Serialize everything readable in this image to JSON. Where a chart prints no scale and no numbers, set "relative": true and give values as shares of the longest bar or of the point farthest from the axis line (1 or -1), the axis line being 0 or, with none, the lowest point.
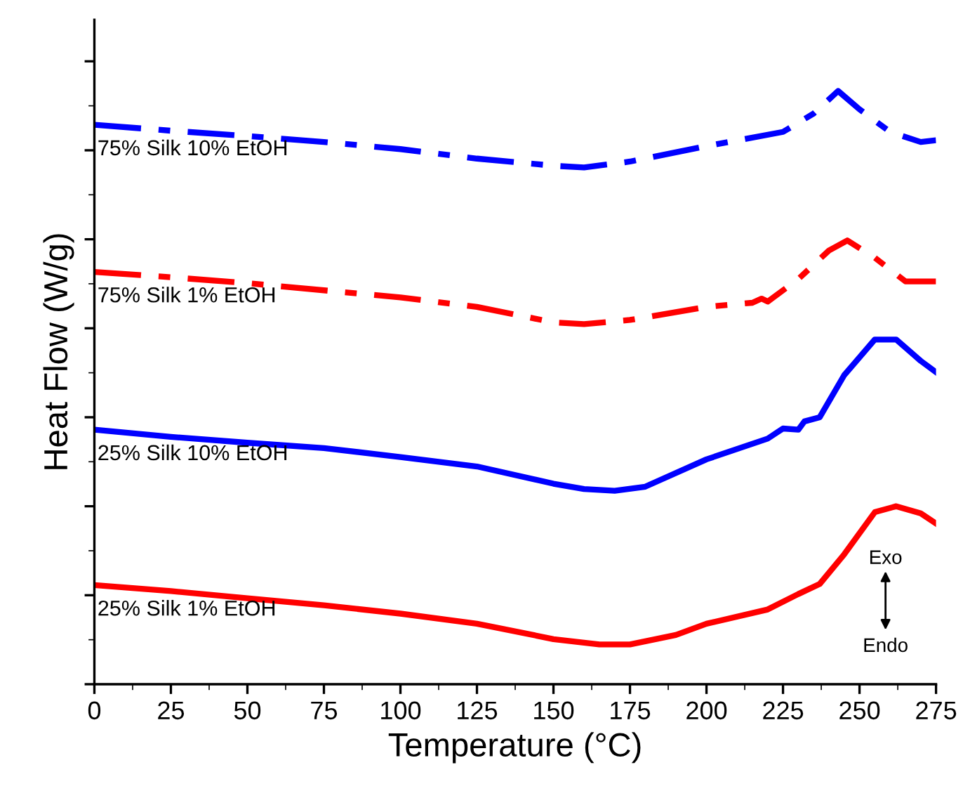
{
  "chart_data": {
    "type": "line",
    "relative": true,
    "xlabel": "Temperature (°C)",
    "ylabel": "Heat Flow (W/g)",
    "xlim": [
      0,
      275
    ],
    "xticks": [
      0,
      25,
      50,
      75,
      100,
      125,
      150,
      175,
      200,
      225,
      250,
      275
    ],
    "tick_labels": "x",
    "grid": false,
    "legend": false,
    "marker": "none",
    "annotations": [
      "Exo",
      "Endo"
    ],
    "series": [
      {
        "name": "75% Silk 10% EtOH",
        "color": "#0000ff",
        "line_style": "dashed",
        "x": [
          0,
          25,
          50,
          75,
          100,
          125,
          150,
          160,
          175,
          200,
          225,
          235,
          243,
          250,
          260,
          270,
          275
        ],
        "values": [
          0.943,
          0.933,
          0.924,
          0.914,
          0.902,
          0.886,
          0.874,
          0.871,
          0.881,
          0.907,
          0.931,
          0.962,
          1.0,
          0.969,
          0.931,
          0.914,
          0.917
        ]
      },
      {
        "name": "75% Silk 1% EtOH",
        "color": "#ff0000",
        "line_style": "dashed",
        "x": [
          0,
          25,
          50,
          75,
          100,
          125,
          150,
          160,
          175,
          200,
          215,
          218,
          220,
          230,
          240,
          246,
          255,
          265,
          275
        ],
        "values": [
          0.695,
          0.686,
          0.676,
          0.664,
          0.652,
          0.636,
          0.61,
          0.607,
          0.614,
          0.636,
          0.643,
          0.65,
          0.645,
          0.683,
          0.731,
          0.748,
          0.719,
          0.679,
          0.679
        ]
      },
      {
        "name": "25% Silk 10% EtOH",
        "color": "#0000ff",
        "line_style": "solid",
        "x": [
          0,
          25,
          50,
          75,
          100,
          125,
          150,
          160,
          170,
          180,
          200,
          220,
          225,
          230,
          232,
          237,
          245,
          255,
          262,
          270,
          275
        ],
        "values": [
          0.429,
          0.417,
          0.407,
          0.398,
          0.383,
          0.367,
          0.338,
          0.329,
          0.326,
          0.333,
          0.379,
          0.414,
          0.431,
          0.429,
          0.443,
          0.45,
          0.521,
          0.581,
          0.581,
          0.545,
          0.526
        ]
      },
      {
        "name": "25% Silk 1% EtOH",
        "color": "#ff0000",
        "line_style": "solid",
        "x": [
          0,
          25,
          50,
          75,
          100,
          125,
          150,
          165,
          175,
          190,
          200,
          220,
          230,
          237,
          245,
          255,
          262,
          270,
          275
        ],
        "values": [
          0.167,
          0.157,
          0.145,
          0.133,
          0.119,
          0.102,
          0.076,
          0.067,
          0.067,
          0.083,
          0.102,
          0.126,
          0.152,
          0.169,
          0.219,
          0.29,
          0.3,
          0.288,
          0.271
        ]
      }
    ]
  }
}
